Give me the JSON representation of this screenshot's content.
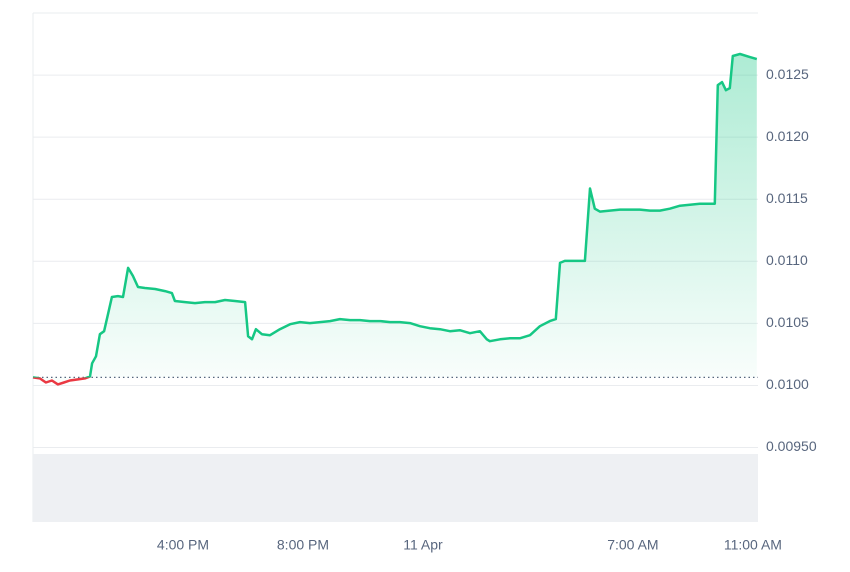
{
  "chart_data": {
    "type": "line",
    "x": [
      -13.0,
      -12.77,
      -12.57,
      -12.37,
      -12.17,
      -11.97,
      -11.77,
      -11.5,
      -11.27,
      -11.1,
      -11.03,
      -10.9,
      -10.77,
      -10.63,
      -10.5,
      -10.37,
      -10.17,
      -10.0,
      -9.83,
      -9.67,
      -9.5,
      -9.27,
      -8.93,
      -8.6,
      -8.37,
      -8.27,
      -7.93,
      -7.6,
      -7.27,
      -6.93,
      -6.6,
      -6.27,
      -5.93,
      -5.83,
      -5.7,
      -5.57,
      -5.37,
      -5.1,
      -4.77,
      -4.43,
      -4.1,
      -3.77,
      -3.43,
      -3.1,
      -2.77,
      -2.43,
      -2.1,
      -1.77,
      -1.43,
      -1.1,
      -0.77,
      -0.43,
      -0.1,
      0.23,
      0.57,
      0.9,
      1.23,
      1.57,
      1.9,
      2.13,
      2.23,
      2.57,
      2.9,
      3.23,
      3.57,
      3.9,
      4.23,
      4.43,
      4.57,
      4.73,
      5.07,
      5.4,
      5.57,
      5.73,
      5.9,
      6.23,
      6.57,
      6.9,
      7.23,
      7.57,
      7.9,
      8.23,
      8.57,
      8.9,
      9.23,
      9.63,
      9.73,
      9.83,
      9.97,
      10.1,
      10.23,
      10.33,
      10.57,
      10.9,
      11.13
    ],
    "values": [
      0.010065,
      0.010057,
      0.010024,
      0.01004,
      0.010008,
      0.010024,
      0.01004,
      0.010049,
      0.010057,
      0.010073,
      0.010178,
      0.010235,
      0.010413,
      0.010437,
      0.010574,
      0.010712,
      0.01072,
      0.010712,
      0.010947,
      0.010882,
      0.010793,
      0.010785,
      0.010777,
      0.01076,
      0.010744,
      0.01068,
      0.010671,
      0.010663,
      0.010671,
      0.010671,
      0.010688,
      0.01068,
      0.010671,
      0.010396,
      0.010372,
      0.010453,
      0.010413,
      0.010405,
      0.010453,
      0.010493,
      0.01051,
      0.010502,
      0.01051,
      0.010518,
      0.010534,
      0.010526,
      0.010526,
      0.010518,
      0.010518,
      0.01051,
      0.01051,
      0.010502,
      0.010477,
      0.010461,
      0.010453,
      0.010437,
      0.010445,
      0.010421,
      0.010437,
      0.010372,
      0.010356,
      0.010372,
      0.01038,
      0.01038,
      0.010405,
      0.010477,
      0.010518,
      0.010534,
      0.010987,
      0.011003,
      0.011003,
      0.011003,
      0.011586,
      0.011424,
      0.0114,
      0.011408,
      0.011416,
      0.011416,
      0.011416,
      0.011408,
      0.011408,
      0.011424,
      0.011448,
      0.011456,
      0.011464,
      0.011464,
      0.011464,
      0.012419,
      0.012443,
      0.012378,
      0.012395,
      0.012654,
      0.01267,
      0.012645,
      0.012629
    ],
    "baseline": 0.010065,
    "up_color": "#16c784",
    "down_color": "#ea3943",
    "xlim": [
      -13,
      11.17
    ],
    "xticks": [
      {
        "value": -8,
        "label": "4:00 PM"
      },
      {
        "value": -4,
        "label": "8:00 PM"
      },
      {
        "value": 0,
        "label": "11 Apr"
      },
      {
        "value": 7,
        "label": "7:00 AM"
      },
      {
        "value": 11,
        "label": "11:00 AM"
      }
    ],
    "ylim": [
      0.0089,
      0.013
    ],
    "yticks": [
      {
        "value": 0.0095,
        "label": "0.00950"
      },
      {
        "value": 0.01,
        "label": "0.0100"
      },
      0.0105,
      {
        "value": 0.011,
        "label": "0.0110"
      },
      0.0115,
      {
        "value": 0.012,
        "label": "0.0120"
      },
      0.0125
    ],
    "grid": true
  }
}
